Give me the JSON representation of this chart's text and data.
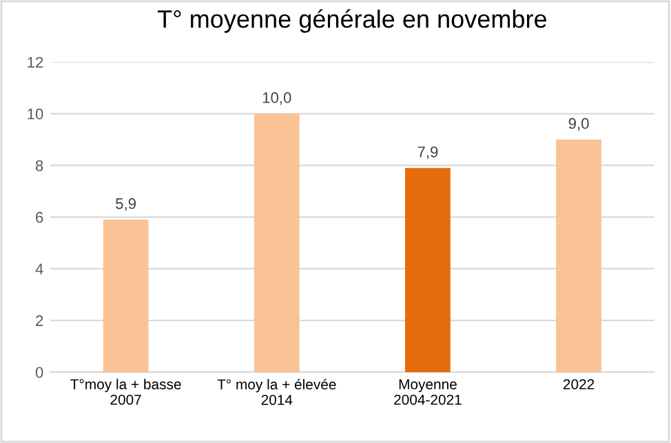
{
  "chart_data": {
    "type": "bar",
    "title": "T° moyenne générale en novembre",
    "categories": [
      "T°moy la + basse\n2007",
      "T° moy la + élevée\n2014",
      "Moyenne\n2004-2021",
      "2022"
    ],
    "values": [
      5.9,
      10.0,
      7.9,
      9.0
    ],
    "colors": [
      "#f9c396",
      "#f9c396",
      "#e46c0a",
      "#f9c396"
    ],
    "value_labels": [
      "5,9",
      "10,0",
      "7,9",
      "9,0"
    ],
    "ylim": [
      0,
      12
    ],
    "yticks": [
      0,
      2,
      4,
      6,
      8,
      10,
      12
    ],
    "grid": "y"
  }
}
